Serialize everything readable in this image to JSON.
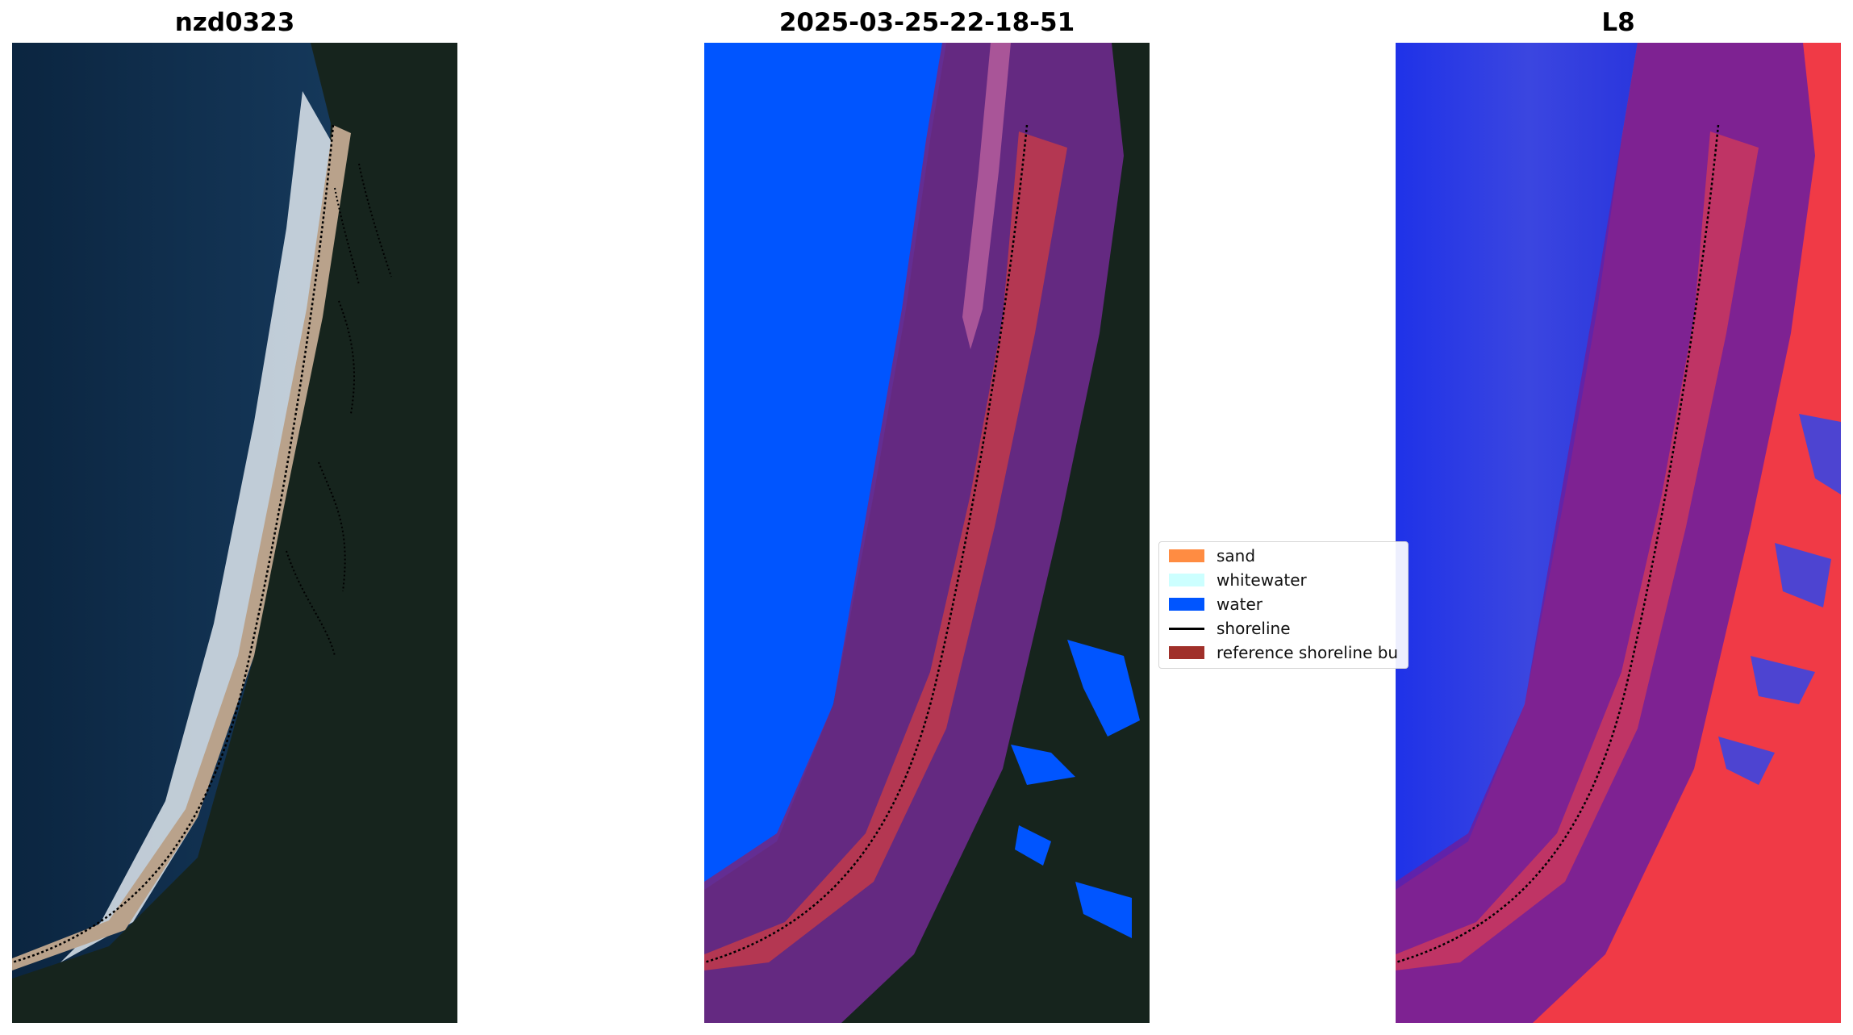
{
  "panels": [
    {
      "title": "nzd0323"
    },
    {
      "title": "2025-03-25-22-18-51"
    },
    {
      "title": "L8"
    }
  ],
  "legend": {
    "items": [
      {
        "label": "sand",
        "color": "#ff8c42",
        "kind": "patch"
      },
      {
        "label": "whitewater",
        "color": "#ccffff",
        "kind": "patch"
      },
      {
        "label": "water",
        "color": "#0055ff",
        "kind": "patch"
      },
      {
        "label": "shoreline",
        "color": "#000000",
        "kind": "line"
      },
      {
        "label": "reference shoreline bu",
        "color": "#a0302a",
        "kind": "patch"
      }
    ]
  },
  "colors": {
    "ocean": "#0e2a45",
    "forest": "#1a2a22",
    "sand_rgb": "#b5a08a",
    "surf": "#e8eef2",
    "water_class": "#0055ff",
    "buffer": "#a0302a",
    "index_blue": "#2233ee",
    "index_red": "#ee2233"
  }
}
